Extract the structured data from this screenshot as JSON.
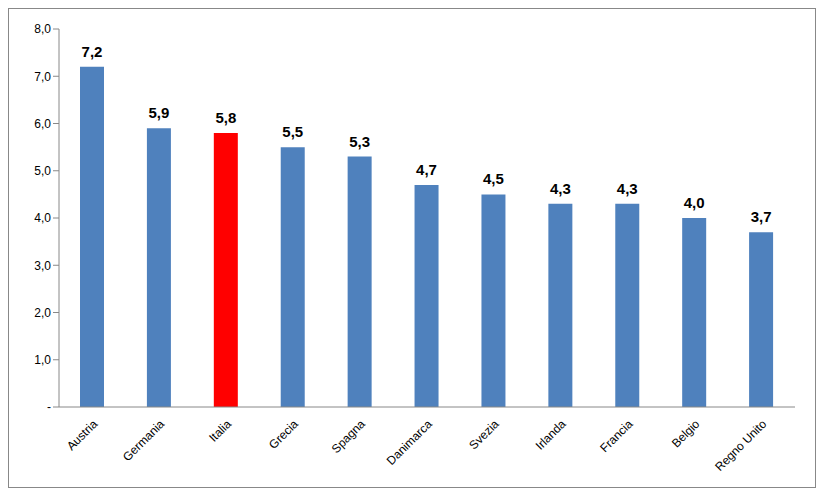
{
  "chart_data": {
    "type": "bar",
    "categories": [
      "Austria",
      "Germania",
      "Italia",
      "Grecia",
      "Spagna",
      "Danimarca",
      "Svezia",
      "Irlanda",
      "Francia",
      "Belgio",
      "Regno Unito"
    ],
    "values": [
      7.2,
      5.9,
      5.8,
      5.5,
      5.3,
      4.7,
      4.5,
      4.3,
      4.3,
      4.0,
      3.7
    ],
    "value_labels": [
      "7,2",
      "5,9",
      "5,8",
      "5,5",
      "5,3",
      "4,7",
      "4,5",
      "4,3",
      "4,3",
      "4,0",
      "3,7"
    ],
    "colors": [
      "#4f81bd",
      "#4f81bd",
      "#ff0000",
      "#4f81bd",
      "#4f81bd",
      "#4f81bd",
      "#4f81bd",
      "#4f81bd",
      "#4f81bd",
      "#4f81bd",
      "#4f81bd"
    ],
    "ylim": [
      0,
      8
    ],
    "yticks": [
      {
        "value": 0,
        "label": "-"
      },
      {
        "value": 1,
        "label": "1,0"
      },
      {
        "value": 2,
        "label": "2,0"
      },
      {
        "value": 3,
        "label": "3,0"
      },
      {
        "value": 4,
        "label": "4,0"
      },
      {
        "value": 5,
        "label": "5,0"
      },
      {
        "value": 6,
        "label": "6,0"
      },
      {
        "value": 7,
        "label": "7,0"
      },
      {
        "value": 8,
        "label": "8,0"
      }
    ],
    "grid": false,
    "data_labels": true
  }
}
